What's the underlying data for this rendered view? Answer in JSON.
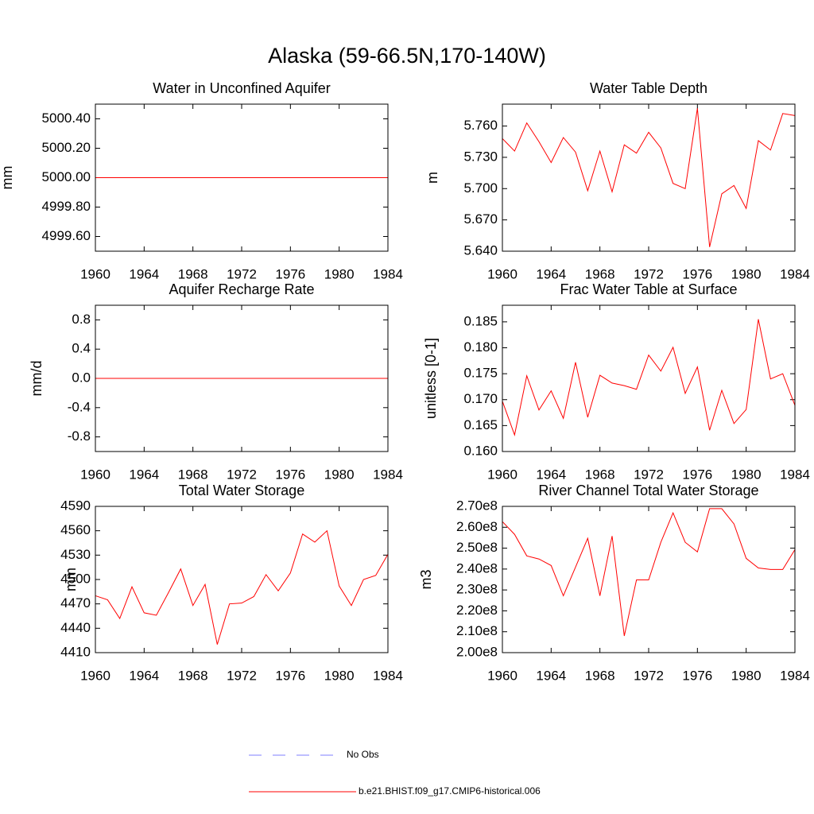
{
  "title": "Alaska (59-66.5N,170-140W)",
  "legend": [
    {
      "name": "No Obs",
      "color": "#7f7fff",
      "dashed": true
    },
    {
      "name": "b.e21.BHIST.f09_g17.CMIP6-historical.006",
      "color": "#ff0000",
      "dashed": false
    }
  ],
  "chart_data": [
    {
      "type": "line",
      "title": "Water in Unconfined Aquifer",
      "y_label": "mm",
      "x": [
        1960,
        1961,
        1962,
        1963,
        1964,
        1965,
        1966,
        1967,
        1968,
        1969,
        1970,
        1971,
        1972,
        1973,
        1974,
        1975,
        1976,
        1977,
        1978,
        1979,
        1980,
        1981,
        1982,
        1983,
        1984
      ],
      "xlim": [
        1960,
        1984
      ],
      "xticks": [
        1960,
        1964,
        1968,
        1972,
        1976,
        1980,
        1984
      ],
      "ylim": [
        4999.5,
        5000.5
      ],
      "yticks": [
        {
          "value": 4999.6,
          "label": "4999.60"
        },
        {
          "value": 4999.8,
          "label": "4999.80"
        },
        {
          "value": 5000,
          "label": "5000.00"
        },
        {
          "value": 5000.2,
          "label": "5000.20"
        },
        {
          "value": 5000.4,
          "label": "5000.40"
        }
      ],
      "series": [
        {
          "color": "#ff0000",
          "values": [
            5000,
            5000,
            5000,
            5000,
            5000,
            5000,
            5000,
            5000,
            5000,
            5000,
            5000,
            5000,
            5000,
            5000,
            5000,
            5000,
            5000,
            5000,
            5000,
            5000,
            5000,
            5000,
            5000,
            5000,
            5000
          ]
        }
      ]
    },
    {
      "type": "line",
      "title": "Water Table Depth",
      "y_label": "m",
      "x": [
        1960,
        1961,
        1962,
        1963,
        1964,
        1965,
        1966,
        1967,
        1968,
        1969,
        1970,
        1971,
        1972,
        1973,
        1974,
        1975,
        1976,
        1977,
        1978,
        1979,
        1980,
        1981,
        1982,
        1983,
        1984
      ],
      "xlim": [
        1960,
        1984
      ],
      "xticks": [
        1960,
        1964,
        1968,
        1972,
        1976,
        1980,
        1984
      ],
      "ylim": [
        5.64,
        5.781
      ],
      "yticks": [
        {
          "value": 5.64,
          "label": "5.640"
        },
        {
          "value": 5.67,
          "label": "5.670"
        },
        {
          "value": 5.7,
          "label": "5.700"
        },
        {
          "value": 5.73,
          "label": "5.730"
        },
        {
          "value": 5.76,
          "label": "5.760"
        }
      ],
      "series": [
        {
          "color": "#ff0000",
          "values": [
            5.748,
            5.736,
            5.763,
            5.745,
            5.725,
            5.749,
            5.735,
            5.698,
            5.736,
            5.697,
            5.742,
            5.734,
            5.754,
            5.739,
            5.705,
            5.7,
            5.777,
            5.644,
            5.695,
            5.703,
            5.681,
            5.746,
            5.737,
            5.772,
            5.77
          ]
        }
      ]
    },
    {
      "type": "line",
      "title": "Aquifer Recharge Rate",
      "y_label": "mm/d",
      "x": [
        1960,
        1961,
        1962,
        1963,
        1964,
        1965,
        1966,
        1967,
        1968,
        1969,
        1970,
        1971,
        1972,
        1973,
        1974,
        1975,
        1976,
        1977,
        1978,
        1979,
        1980,
        1981,
        1982,
        1983,
        1984
      ],
      "xlim": [
        1960,
        1984
      ],
      "xticks": [
        1960,
        1964,
        1968,
        1972,
        1976,
        1980,
        1984
      ],
      "ylim": [
        -1,
        1
      ],
      "yticks": [
        -0.8,
        -0.4,
        {
          "value": 0,
          "label": "0.0"
        },
        0.4,
        0.8
      ],
      "series": [
        {
          "color": "#ff0000",
          "values": [
            0,
            0,
            0,
            0,
            0,
            0,
            0,
            0,
            0,
            0,
            0,
            0,
            0,
            0,
            0,
            0,
            0,
            0,
            0,
            0,
            0,
            0,
            0,
            0,
            0
          ]
        }
      ]
    },
    {
      "type": "line",
      "title": "Frac Water Table at Surface",
      "y_label": "unitless [0-1]",
      "x": [
        1960,
        1961,
        1962,
        1963,
        1964,
        1965,
        1966,
        1967,
        1968,
        1969,
        1970,
        1971,
        1972,
        1973,
        1974,
        1975,
        1976,
        1977,
        1978,
        1979,
        1980,
        1981,
        1982,
        1983,
        1984
      ],
      "xlim": [
        1960,
        1984
      ],
      "xticks": [
        1960,
        1964,
        1968,
        1972,
        1976,
        1980,
        1984
      ],
      "ylim": [
        0.16,
        0.1882
      ],
      "yticks": [
        {
          "value": 0.16,
          "label": "0.160"
        },
        0.165,
        {
          "value": 0.17,
          "label": "0.170"
        },
        0.175,
        {
          "value": 0.18,
          "label": "0.180"
        },
        0.185
      ],
      "series": [
        {
          "color": "#ff0000",
          "values": [
            0.1697,
            0.1632,
            0.1746,
            0.168,
            0.1717,
            0.1664,
            0.1772,
            0.1666,
            0.1747,
            0.1732,
            0.1727,
            0.172,
            0.1786,
            0.1755,
            0.1801,
            0.1712,
            0.1763,
            0.1641,
            0.1718,
            0.1654,
            0.1681,
            0.1855,
            0.174,
            0.175,
            0.1689
          ]
        }
      ]
    },
    {
      "type": "line",
      "title": "Total Water Storage",
      "y_label": "mm",
      "x": [
        1960,
        1961,
        1962,
        1963,
        1964,
        1965,
        1966,
        1967,
        1968,
        1969,
        1970,
        1971,
        1972,
        1973,
        1974,
        1975,
        1976,
        1977,
        1978,
        1979,
        1980,
        1981,
        1982,
        1983,
        1984
      ],
      "xlim": [
        1960,
        1984
      ],
      "xticks": [
        1960,
        1964,
        1968,
        1972,
        1976,
        1980,
        1984
      ],
      "ylim": [
        4410,
        4590
      ],
      "yticks": [
        4410,
        4440,
        4470,
        4500,
        4530,
        4560,
        4590
      ],
      "series": [
        {
          "color": "#ff0000",
          "values": [
            4480,
            4475,
            4452,
            4491,
            4459,
            4456,
            4484,
            4513,
            4468,
            4494,
            4420,
            4470,
            4471,
            4479,
            4506,
            4486,
            4508,
            4556,
            4546,
            4560,
            4492,
            4468,
            4500,
            4505,
            4531
          ]
        }
      ]
    },
    {
      "type": "line",
      "title": "River Channel Total Water Storage",
      "y_label": "m3",
      "x": [
        1960,
        1961,
        1962,
        1963,
        1964,
        1965,
        1966,
        1967,
        1968,
        1969,
        1970,
        1971,
        1972,
        1973,
        1974,
        1975,
        1976,
        1977,
        1978,
        1979,
        1980,
        1981,
        1982,
        1983,
        1984
      ],
      "xlim": [
        1960,
        1984
      ],
      "xticks": [
        1960,
        1964,
        1968,
        1972,
        1976,
        1980,
        1984
      ],
      "ylim": [
        200000000,
        270000000
      ],
      "yticks": [
        {
          "value": 200000000,
          "label": "2.00e8"
        },
        {
          "value": 210000000,
          "label": "2.10e8"
        },
        {
          "value": 220000000,
          "label": "2.20e8"
        },
        {
          "value": 230000000,
          "label": "2.30e8"
        },
        {
          "value": 240000000,
          "label": "2.40e8"
        },
        {
          "value": 250000000,
          "label": "2.50e8"
        },
        {
          "value": 260000000,
          "label": "2.60e8"
        },
        {
          "value": 270000000,
          "label": "2.70e8"
        }
      ],
      "series": [
        {
          "color": "#ff0000",
          "values": [
            262700000,
            256600000,
            246300000,
            244800000,
            241700000,
            227200000,
            240900000,
            254700000,
            227200000,
            255800000,
            208000000,
            234800000,
            234800000,
            252800000,
            266900000,
            252800000,
            248200000,
            268900000,
            268900000,
            261600000,
            245100000,
            240500000,
            239800000,
            239800000,
            249300000
          ]
        }
      ]
    }
  ]
}
